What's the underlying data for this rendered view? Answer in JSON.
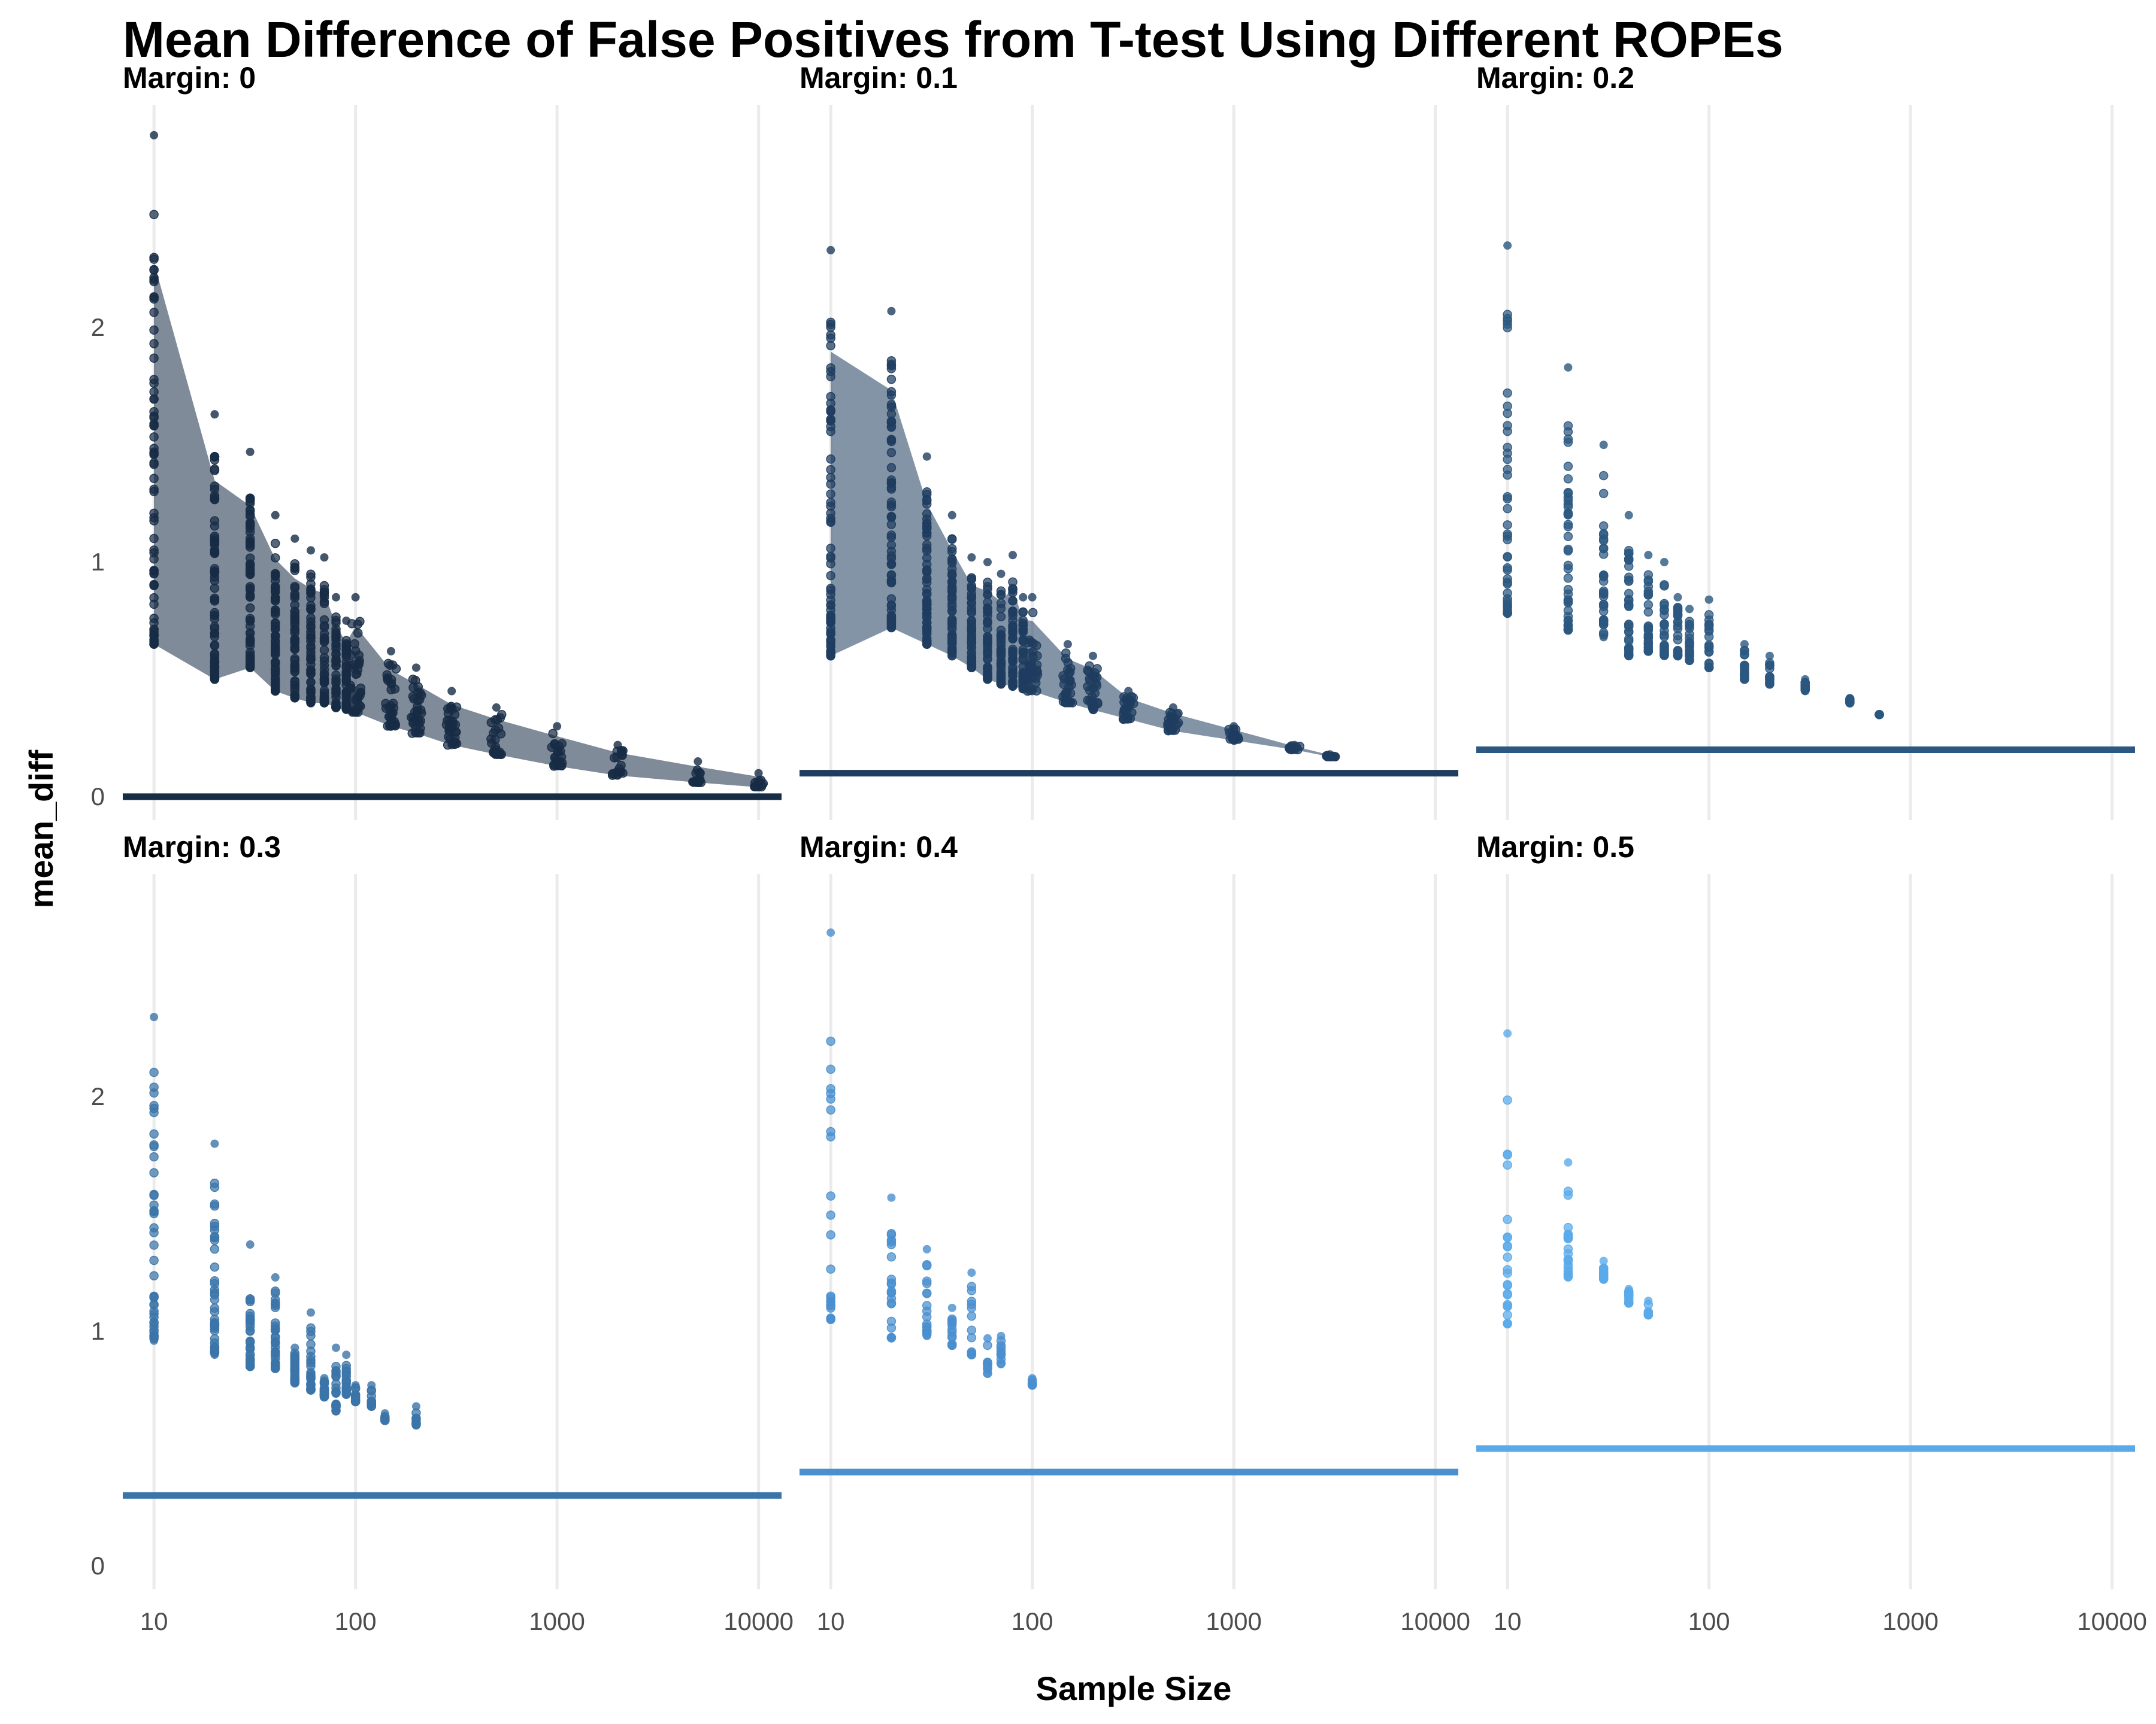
{
  "chart_data": {
    "type": "scatter",
    "title": "Mean Difference of False Positives from T-test Using Different ROPEs",
    "xlabel": "Sample Size",
    "ylabel": "mean_diff",
    "x_scale": "log10",
    "x_ticks": [
      "10",
      "100",
      "1000",
      "10000"
    ],
    "y_ticks": [
      "0",
      "1",
      "2"
    ],
    "ylim": [
      -0.1,
      2.95
    ],
    "xlim": [
      7,
      13000
    ],
    "grid": "vertical major lines only",
    "facets": [
      {
        "label": "Margin: 0",
        "margin": 0,
        "color": "#172c45",
        "x": [
          10,
          20,
          30,
          40,
          50,
          60,
          70,
          80,
          90,
          100,
          150,
          200,
          300,
          500,
          1000,
          2000,
          5000,
          10000
        ],
        "y_max": [
          2.82,
          1.63,
          1.47,
          1.2,
          1.1,
          1.05,
          1.02,
          0.85,
          0.75,
          0.85,
          0.62,
          0.55,
          0.45,
          0.38,
          0.3,
          0.22,
          0.15,
          0.1
        ],
        "y_min": [
          0.65,
          0.5,
          0.55,
          0.45,
          0.42,
          0.4,
          0.4,
          0.38,
          0.37,
          0.36,
          0.3,
          0.27,
          0.22,
          0.18,
          0.13,
          0.09,
          0.06,
          0.04
        ],
        "reference_line": 0
      },
      {
        "label": "Margin: 0.1",
        "margin": 0.1,
        "color": "#1f3d5f",
        "x": [
          10,
          20,
          30,
          40,
          50,
          60,
          70,
          80,
          90,
          100,
          150,
          200,
          300,
          500,
          1000,
          2000,
          3000
        ],
        "y_max": [
          2.33,
          2.07,
          1.45,
          1.2,
          1.02,
          1.0,
          0.95,
          1.03,
          0.85,
          0.85,
          0.65,
          0.6,
          0.45,
          0.38,
          0.3,
          0.22,
          0.18
        ],
        "y_min": [
          0.6,
          0.72,
          0.65,
          0.6,
          0.55,
          0.5,
          0.48,
          0.47,
          0.46,
          0.45,
          0.4,
          0.37,
          0.33,
          0.28,
          0.24,
          0.2,
          0.17
        ],
        "reference_line": 0.1
      },
      {
        "label": "Margin: 0.2",
        "margin": 0.2,
        "color": "#2b5780",
        "x": [
          10,
          20,
          30,
          40,
          50,
          60,
          70,
          80,
          100,
          150,
          200,
          300,
          500,
          700
        ],
        "y_max": [
          2.35,
          1.83,
          1.5,
          1.2,
          1.03,
          1.0,
          0.85,
          0.8,
          0.84,
          0.65,
          0.6,
          0.5,
          0.42,
          0.35
        ],
        "y_min": [
          0.78,
          0.71,
          0.68,
          0.6,
          0.62,
          0.6,
          0.6,
          0.58,
          0.55,
          0.5,
          0.48,
          0.45,
          0.4,
          0.35
        ],
        "reference_line": 0.2
      },
      {
        "label": "Margin: 0.3",
        "margin": 0.3,
        "color": "#3b74a8",
        "x": [
          10,
          20,
          30,
          40,
          50,
          60,
          70,
          80,
          90,
          100,
          120,
          140,
          200
        ],
        "y_max": [
          2.34,
          1.8,
          1.37,
          1.23,
          0.93,
          1.08,
          0.8,
          0.93,
          0.9,
          0.77,
          0.77,
          0.65,
          0.68
        ],
        "y_min": [
          0.96,
          0.9,
          0.85,
          0.84,
          0.78,
          0.75,
          0.72,
          0.66,
          0.73,
          0.7,
          0.68,
          0.62,
          0.6
        ],
        "reference_line": 0.3
      },
      {
        "label": "Margin: 0.4",
        "margin": 0.4,
        "color": "#4a8fce",
        "x": [
          10,
          20,
          30,
          40,
          50,
          60,
          70,
          100
        ],
        "y_max": [
          2.7,
          1.57,
          1.35,
          1.1,
          1.25,
          0.97,
          0.98,
          0.8
        ],
        "y_min": [
          1.05,
          0.97,
          0.98,
          0.94,
          0.9,
          0.82,
          0.86,
          0.77
        ],
        "reference_line": 0.4
      },
      {
        "label": "Margin: 0.5",
        "margin": 0.5,
        "color": "#5aaaea",
        "x": [
          10,
          20,
          30,
          40,
          50
        ],
        "y_max": [
          2.27,
          1.72,
          1.3,
          1.18,
          1.13
        ],
        "y_min": [
          1.03,
          1.23,
          1.22,
          1.12,
          1.07
        ],
        "reference_line": 0.5
      }
    ]
  }
}
